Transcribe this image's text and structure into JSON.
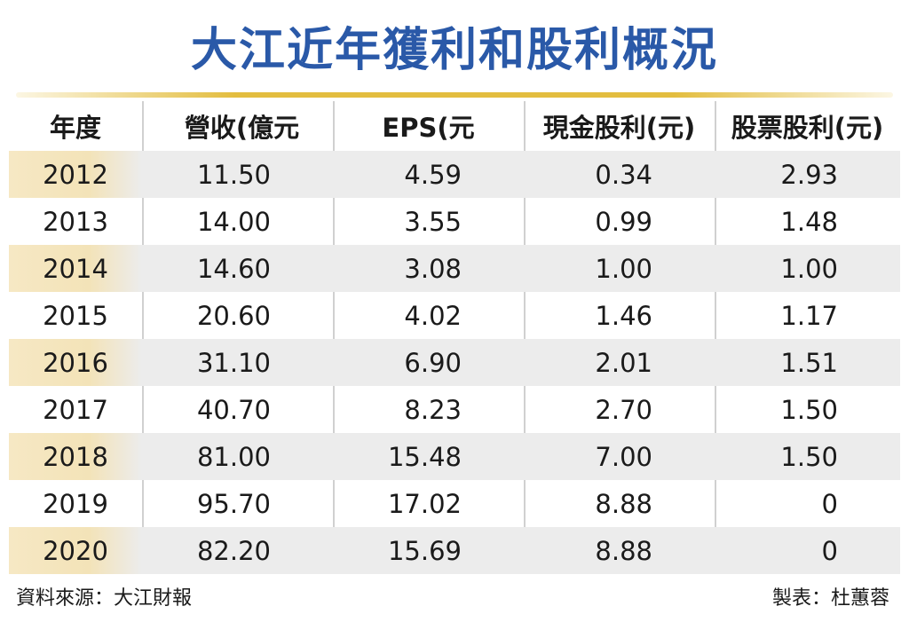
{
  "title": "大江近年獲利和股利概況",
  "chart_data": {
    "type": "table",
    "title": "大江近年獲利和股利概況",
    "columns": [
      "年度",
      "營收(億元",
      "EPS(元",
      "現金股利(元)",
      "股票股利(元)"
    ],
    "rows": [
      [
        "2012",
        "11.50",
        "4.59",
        "0.34",
        "2.93"
      ],
      [
        "2013",
        "14.00",
        "3.55",
        "0.99",
        "1.48"
      ],
      [
        "2014",
        "14.60",
        "3.08",
        "1.00",
        "1.00"
      ],
      [
        "2015",
        "20.60",
        "4.02",
        "1.46",
        "1.17"
      ],
      [
        "2016",
        "31.10",
        "6.90",
        "2.01",
        "1.51"
      ],
      [
        "2017",
        "40.70",
        "8.23",
        "2.70",
        "1.50"
      ],
      [
        "2018",
        "81.00",
        "15.48",
        "7.00",
        "1.50"
      ],
      [
        "2019",
        "95.70",
        "17.02",
        "8.88",
        "0"
      ],
      [
        "2020",
        "82.20",
        "15.69",
        "8.88",
        "0"
      ]
    ],
    "colors": {
      "title": "#2a59a8",
      "rule": "#e3bd3f",
      "shade": "#ececec",
      "year_shade": "#f3e3b8"
    }
  },
  "footer": {
    "source": "資料來源：大江財報",
    "author": "製表：杜蕙蓉"
  }
}
